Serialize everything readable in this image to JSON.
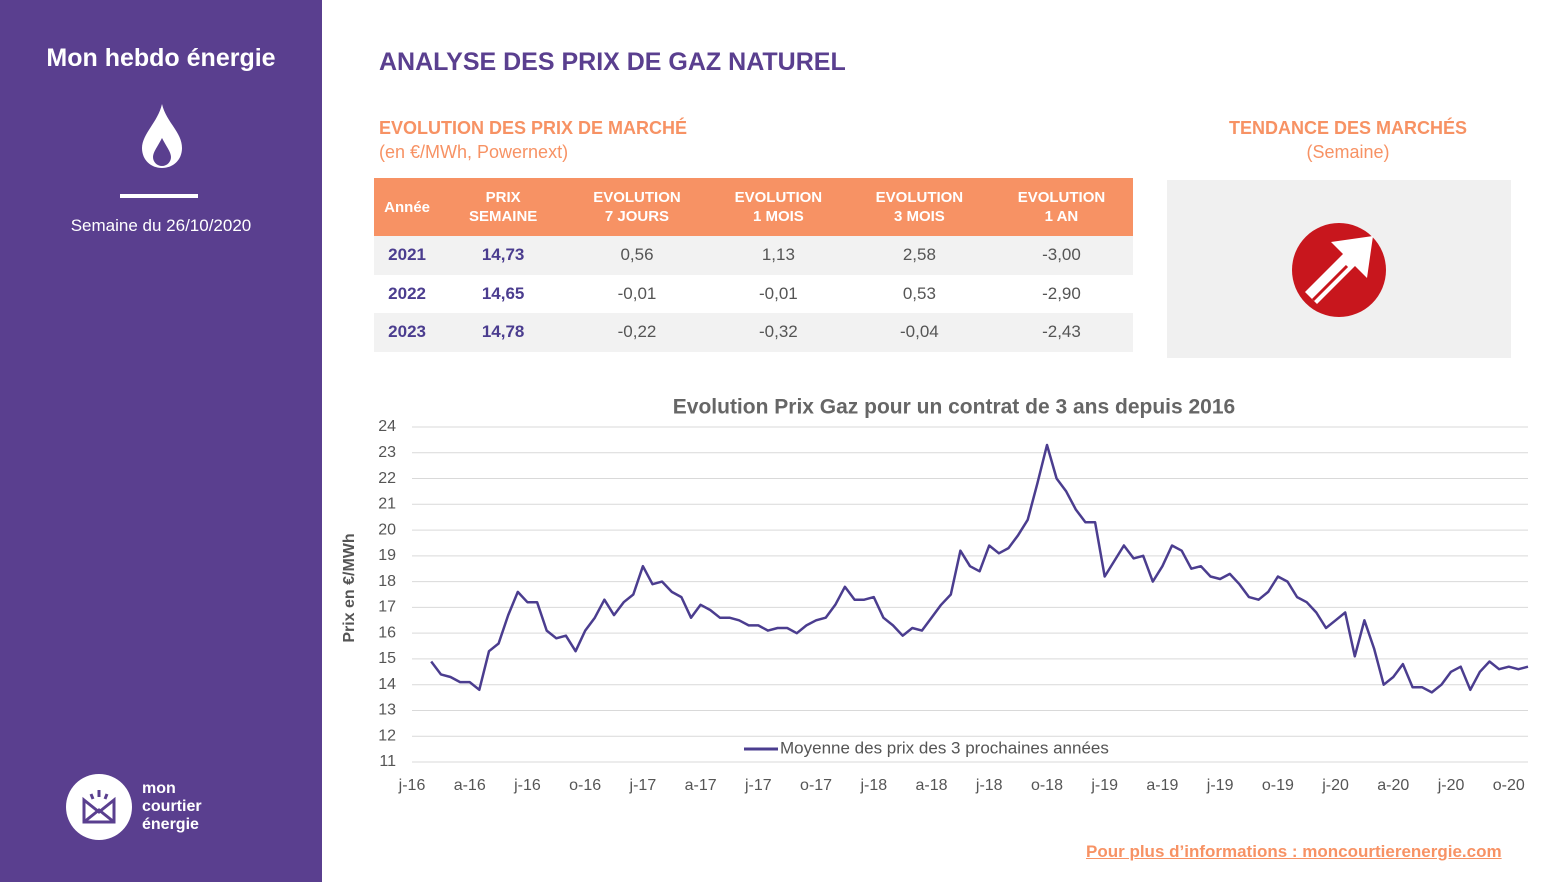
{
  "sidebar": {
    "title": "Mon hebdo énergie",
    "week": "Semaine du 26/10/2020",
    "logo": [
      "mon",
      "courtier",
      "énergie"
    ]
  },
  "header": {
    "title": "ANALYSE DES PRIX DE GAZ NATUREL"
  },
  "table": {
    "title": "EVOLUTION DES PRIX DE MARCHÉ",
    "subtitle": "(en €/MWh, Powernext)",
    "headers": [
      "Année",
      "PRIX SEMAINE",
      "EVOLUTION 7 JOURS",
      "EVOLUTION 1 MOIS",
      "EVOLUTION 3 MOIS",
      "EVOLUTION 1 AN"
    ],
    "rows": [
      [
        "2021",
        "14,73",
        "0,56",
        "1,13",
        "2,58",
        "-3,00"
      ],
      [
        "2022",
        "14,65",
        "-0,01",
        "-0,01",
        "0,53",
        "-2,90"
      ],
      [
        "2023",
        "14,78",
        "-0,22",
        "-0,32",
        "-0,04",
        "-2,43"
      ]
    ]
  },
  "trend": {
    "title": "TENDANCE DES MARCHÉS",
    "subtitle": "(Semaine)"
  },
  "footer": {
    "link": "Pour plus d’informations : moncourtierenergie.com"
  },
  "chart_data": {
    "type": "line",
    "title": "Evolution Prix Gaz pour un contrat de 3 ans depuis 2016",
    "y_label": "Prix en €/MWh",
    "categories": [
      "j-16",
      null,
      null,
      null,
      null,
      null,
      "a-16",
      null,
      null,
      null,
      null,
      null,
      "j-16",
      null,
      null,
      null,
      null,
      null,
      "o-16",
      null,
      null,
      null,
      null,
      null,
      "j-17",
      null,
      null,
      null,
      null,
      null,
      "a-17",
      null,
      null,
      null,
      null,
      null,
      "j-17",
      null,
      null,
      null,
      null,
      null,
      "o-17",
      null,
      null,
      null,
      null,
      null,
      "j-18",
      null,
      null,
      null,
      null,
      null,
      "a-18",
      null,
      null,
      null,
      null,
      null,
      "j-18",
      null,
      null,
      null,
      null,
      null,
      "o-18",
      null,
      null,
      null,
      null,
      null,
      "j-19",
      null,
      null,
      null,
      null,
      null,
      "a-19",
      null,
      null,
      null,
      null,
      null,
      "j-19",
      null,
      null,
      null,
      null,
      null,
      "o-19",
      null,
      null,
      null,
      null,
      null,
      "j-20",
      null,
      null,
      null,
      null,
      null,
      "a-20",
      null,
      null,
      null,
      null,
      null,
      "j-20",
      null,
      null,
      null,
      null,
      null,
      "o-20",
      null,
      null
    ],
    "series": [
      {
        "name": "Moyenne des prix des 3 prochaines années",
        "color": "#4b3d8f",
        "values": [
          null,
          null,
          14.9,
          14.4,
          14.3,
          14.1,
          14.1,
          13.8,
          15.3,
          15.6,
          16.7,
          17.6,
          17.2,
          17.2,
          16.1,
          15.8,
          15.9,
          15.3,
          16.1,
          16.6,
          17.3,
          16.7,
          17.2,
          17.5,
          18.6,
          17.9,
          18.0,
          17.6,
          17.4,
          16.6,
          17.1,
          16.9,
          16.6,
          16.6,
          16.5,
          16.3,
          16.3,
          16.1,
          16.2,
          16.2,
          16.0,
          16.3,
          16.5,
          16.6,
          17.1,
          17.8,
          17.3,
          17.3,
          17.4,
          16.6,
          16.3,
          15.9,
          16.2,
          16.1,
          16.6,
          17.1,
          17.5,
          19.2,
          18.6,
          18.4,
          19.4,
          19.1,
          19.3,
          19.8,
          20.4,
          21.8,
          23.3,
          22.0,
          21.5,
          20.8,
          20.3,
          20.3,
          18.2,
          18.8,
          19.4,
          18.9,
          19.0,
          18.0,
          18.6,
          19.4,
          19.2,
          18.5,
          18.6,
          18.2,
          18.1,
          18.3,
          17.9,
          17.4,
          17.3,
          17.6,
          18.2,
          18.0,
          17.4,
          17.2,
          16.8,
          16.2,
          16.5,
          16.8,
          15.1,
          16.5,
          15.4,
          14.0,
          14.3,
          14.8,
          13.9,
          13.9,
          13.7,
          14.0,
          14.5,
          14.7,
          13.8,
          14.5,
          14.9,
          14.6,
          14.7,
          14.6,
          14.7
        ]
      }
    ],
    "ylim": [
      11,
      24
    ],
    "yticks": [
      11,
      12,
      13,
      14,
      15,
      16,
      17,
      18,
      19,
      20,
      21,
      22,
      23,
      24
    ],
    "grid": true,
    "legend": "bottom"
  }
}
